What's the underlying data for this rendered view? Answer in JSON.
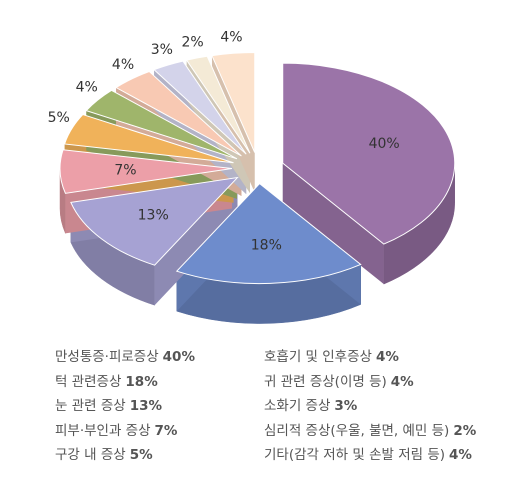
{
  "chart_data": {
    "type": "pie",
    "style": "3d-exploded",
    "slices": [
      {
        "label": "만성통증·피로증상",
        "value": 40,
        "display": "40%",
        "color": "#9b74a8"
      },
      {
        "label": "턱 관련증상",
        "value": 18,
        "display": "18%",
        "color": "#6e8ccc"
      },
      {
        "label": "눈 관련 증상",
        "value": 13,
        "display": "13%",
        "color": "#a6a2d3"
      },
      {
        "label": "피부·부인과 증상",
        "value": 7,
        "display": "7%",
        "color": "#ec9fa8"
      },
      {
        "label": "구강 내 증상",
        "value": 5,
        "display": "5%",
        "color": "#f0b25a"
      },
      {
        "label": "호흡기 및 인후증상",
        "value": 4,
        "display": "4%",
        "color": "#9fb56b"
      },
      {
        "label": "귀 관련 증상(이명 등)",
        "value": 4,
        "display": "4%",
        "color": "#f8c9b3"
      },
      {
        "label": "소화기 증상",
        "value": 3,
        "display": "3%",
        "color": "#d3d3ea"
      },
      {
        "label": "심리적 증상(우울, 불면, 예민 등)",
        "value": 2,
        "display": "2%",
        "color": "#f4ead6"
      },
      {
        "label": "기타(감각 저하 및 손발 저림 등)",
        "value": 4,
        "display": "4%",
        "color": "#fce2cc"
      }
    ],
    "legend": {
      "left": [
        {
          "label": "만성통증·피로증상",
          "value": "40%"
        },
        {
          "label": "턱 관련증상",
          "value": "18%"
        },
        {
          "label": "눈 관련 증상",
          "value": "13%"
        },
        {
          "label": "피부·부인과 증상",
          "value": "7%"
        },
        {
          "label": "구강 내 증상",
          "value": "5%"
        }
      ],
      "right": [
        {
          "label": "호흡기 및 인후증상",
          "value": "4%"
        },
        {
          "label": "귀 관련 증상(이명 등)",
          "value": "4%"
        },
        {
          "label": "소화기 증상",
          "value": "3%"
        },
        {
          "label": "심리적 증상(우울, 불면, 예민 등)",
          "value": "2%"
        },
        {
          "label": "기타(감각 저하 및 손발 저림 등)",
          "value": "4%"
        }
      ]
    }
  }
}
